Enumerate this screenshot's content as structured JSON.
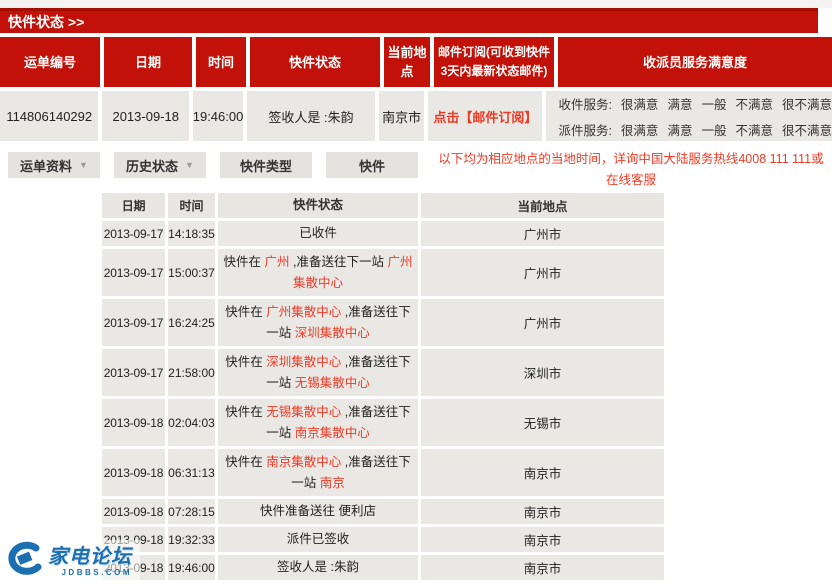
{
  "colors": {
    "accent_red": "#c11108",
    "accent_red_text": "#ee3a25",
    "watermark_blue": "#1c6fb0",
    "cell_gray": "#e9e8e5"
  },
  "banner": {
    "title": "快件状态 >>"
  },
  "summary_table": {
    "headers": [
      "运单编号",
      "日期",
      "时间",
      "快件状态",
      "当前地点",
      "邮件订阅(可收到快件3天内最新状态邮件)",
      "收派员服务满意度"
    ],
    "row": {
      "waybill_no": "114806140292",
      "date": "2013-09-18",
      "time": "19:46:00",
      "status": "签收人是 :朱韵",
      "location": "南京市",
      "subscribe_label": "点击【邮件订阅】",
      "satisfaction": {
        "lines": [
          "收件服务:",
          "派件服务:"
        ],
        "options": [
          "很满意",
          "满意",
          "一般",
          "不满意",
          "很不满意"
        ]
      }
    }
  },
  "tabs": [
    {
      "label": "运单资料",
      "has_arrow": true
    },
    {
      "label": "历史状态",
      "has_arrow": true
    },
    {
      "label": "快件类型",
      "has_arrow": false
    },
    {
      "label": "快件",
      "has_arrow": false
    }
  ],
  "notice": {
    "line1": "以下均为相应地点的当地时间，详询中国大陆服务热线4008 111 111或",
    "line2": "在线客服"
  },
  "history_table": {
    "headers": [
      "日期",
      "时间",
      "快件状态",
      "当前地点"
    ],
    "rows": [
      {
        "date": "2013-09-17",
        "time": "14:18:35",
        "tall": false,
        "location": "广州市",
        "status": [
          {
            "text": "已收件",
            "red": false
          }
        ]
      },
      {
        "date": "2013-09-17",
        "time": "15:00:37",
        "tall": true,
        "location": "广州市",
        "status": [
          {
            "text": "快件在 ",
            "red": false
          },
          {
            "text": "广州",
            "red": true
          },
          {
            "text": " ,准备送往下一站 ",
            "red": false
          },
          {
            "text": "广州集散中心",
            "red": true
          }
        ]
      },
      {
        "date": "2013-09-17",
        "time": "16:24:25",
        "tall": true,
        "location": "广州市",
        "status": [
          {
            "text": "快件在 ",
            "red": false
          },
          {
            "text": "广州集散中心",
            "red": true
          },
          {
            "text": " ,准备送往下一站 ",
            "red": false
          },
          {
            "text": "深圳集散中心",
            "red": true
          }
        ]
      },
      {
        "date": "2013-09-17",
        "time": "21:58:00",
        "tall": true,
        "location": "深圳市",
        "status": [
          {
            "text": "快件在 ",
            "red": false
          },
          {
            "text": "深圳集散中心",
            "red": true
          },
          {
            "text": " ,准备送往下一站 ",
            "red": false
          },
          {
            "text": "无锡集散中心",
            "red": true
          }
        ]
      },
      {
        "date": "2013-09-18",
        "time": "02:04:03",
        "tall": true,
        "location": "无锡市",
        "status": [
          {
            "text": "快件在 ",
            "red": false
          },
          {
            "text": "无锡集散中心",
            "red": true
          },
          {
            "text": " ,准备送往下一站 ",
            "red": false
          },
          {
            "text": "南京集散中心",
            "red": true
          }
        ]
      },
      {
        "date": "2013-09-18",
        "time": "06:31:13",
        "tall": true,
        "location": "南京市",
        "status": [
          {
            "text": "快件在 ",
            "red": false
          },
          {
            "text": "南京集散中心",
            "red": true
          },
          {
            "text": " ,准备送往下一站 ",
            "red": false
          },
          {
            "text": "南京",
            "red": true
          }
        ]
      },
      {
        "date": "2013-09-18",
        "time": "07:28:15",
        "tall": false,
        "location": "南京市",
        "status": [
          {
            "text": "快件准备送往 便利店",
            "red": false
          }
        ]
      },
      {
        "date": "2013-09-18",
        "time": "19:32:33",
        "tall": false,
        "location": "南京市",
        "status": [
          {
            "text": "派件已签收",
            "red": false
          }
        ]
      },
      {
        "date": "2013-09-18",
        "time": "19:46:00",
        "tall": false,
        "location": "南京市",
        "status": [
          {
            "text": "签收人是 :朱韵",
            "red": false
          }
        ]
      }
    ]
  },
  "watermark": {
    "name": "家电论坛",
    "domain": "JDBBS.COM"
  }
}
